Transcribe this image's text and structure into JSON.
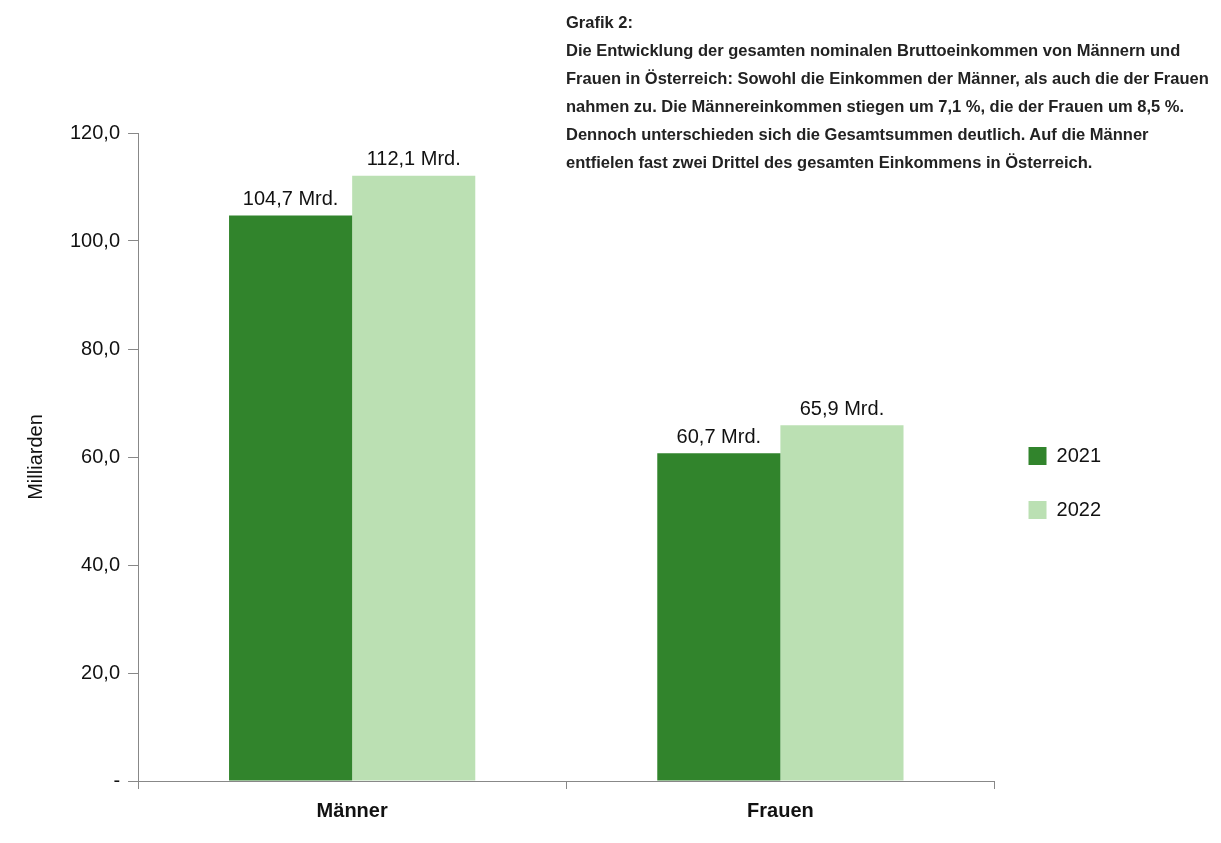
{
  "chart_data": {
    "type": "bar",
    "title": "Grafik 2:",
    "subtitle": "Die Entwicklung der gesamten nominalen Bruttoeinkommen von Männern und Frauen in Österreich: Sowohl die Einkommen der Männer, als auch die der Frauen nahmen zu. Die Männereinkommen stiegen um 7,1 %, die der Frauen um 8,5 %. Dennoch unterschieden sich die Gesamtsummen deutlich. Auf die Männer entfielen fast zwei Drittel des gesamten Einkommens in Österreich.",
    "ylabel": "Milliarden",
    "categories": [
      "Männer",
      "Frauen"
    ],
    "series": [
      {
        "name": "2021",
        "color": "#31842c",
        "values": [
          104.7,
          60.7
        ],
        "value_labels": [
          "104,7 Mrd.",
          "60,7 Mrd."
        ]
      },
      {
        "name": "2022",
        "color": "#bbe0b3",
        "values": [
          112.1,
          65.9
        ],
        "value_labels": [
          "112,1 Mrd.",
          "65,9 Mrd."
        ]
      }
    ],
    "ylim": [
      0,
      120
    ],
    "yticks": [
      {
        "value": 0,
        "label": "-"
      },
      {
        "value": 20,
        "label": "20,0"
      },
      {
        "value": 40,
        "label": "40,0"
      },
      {
        "value": 60,
        "label": "60,0"
      },
      {
        "value": 80,
        "label": "80,0"
      },
      {
        "value": 100,
        "label": "100,0"
      },
      {
        "value": 120,
        "label": "120,0"
      }
    ],
    "grid": false,
    "legend": "right"
  }
}
